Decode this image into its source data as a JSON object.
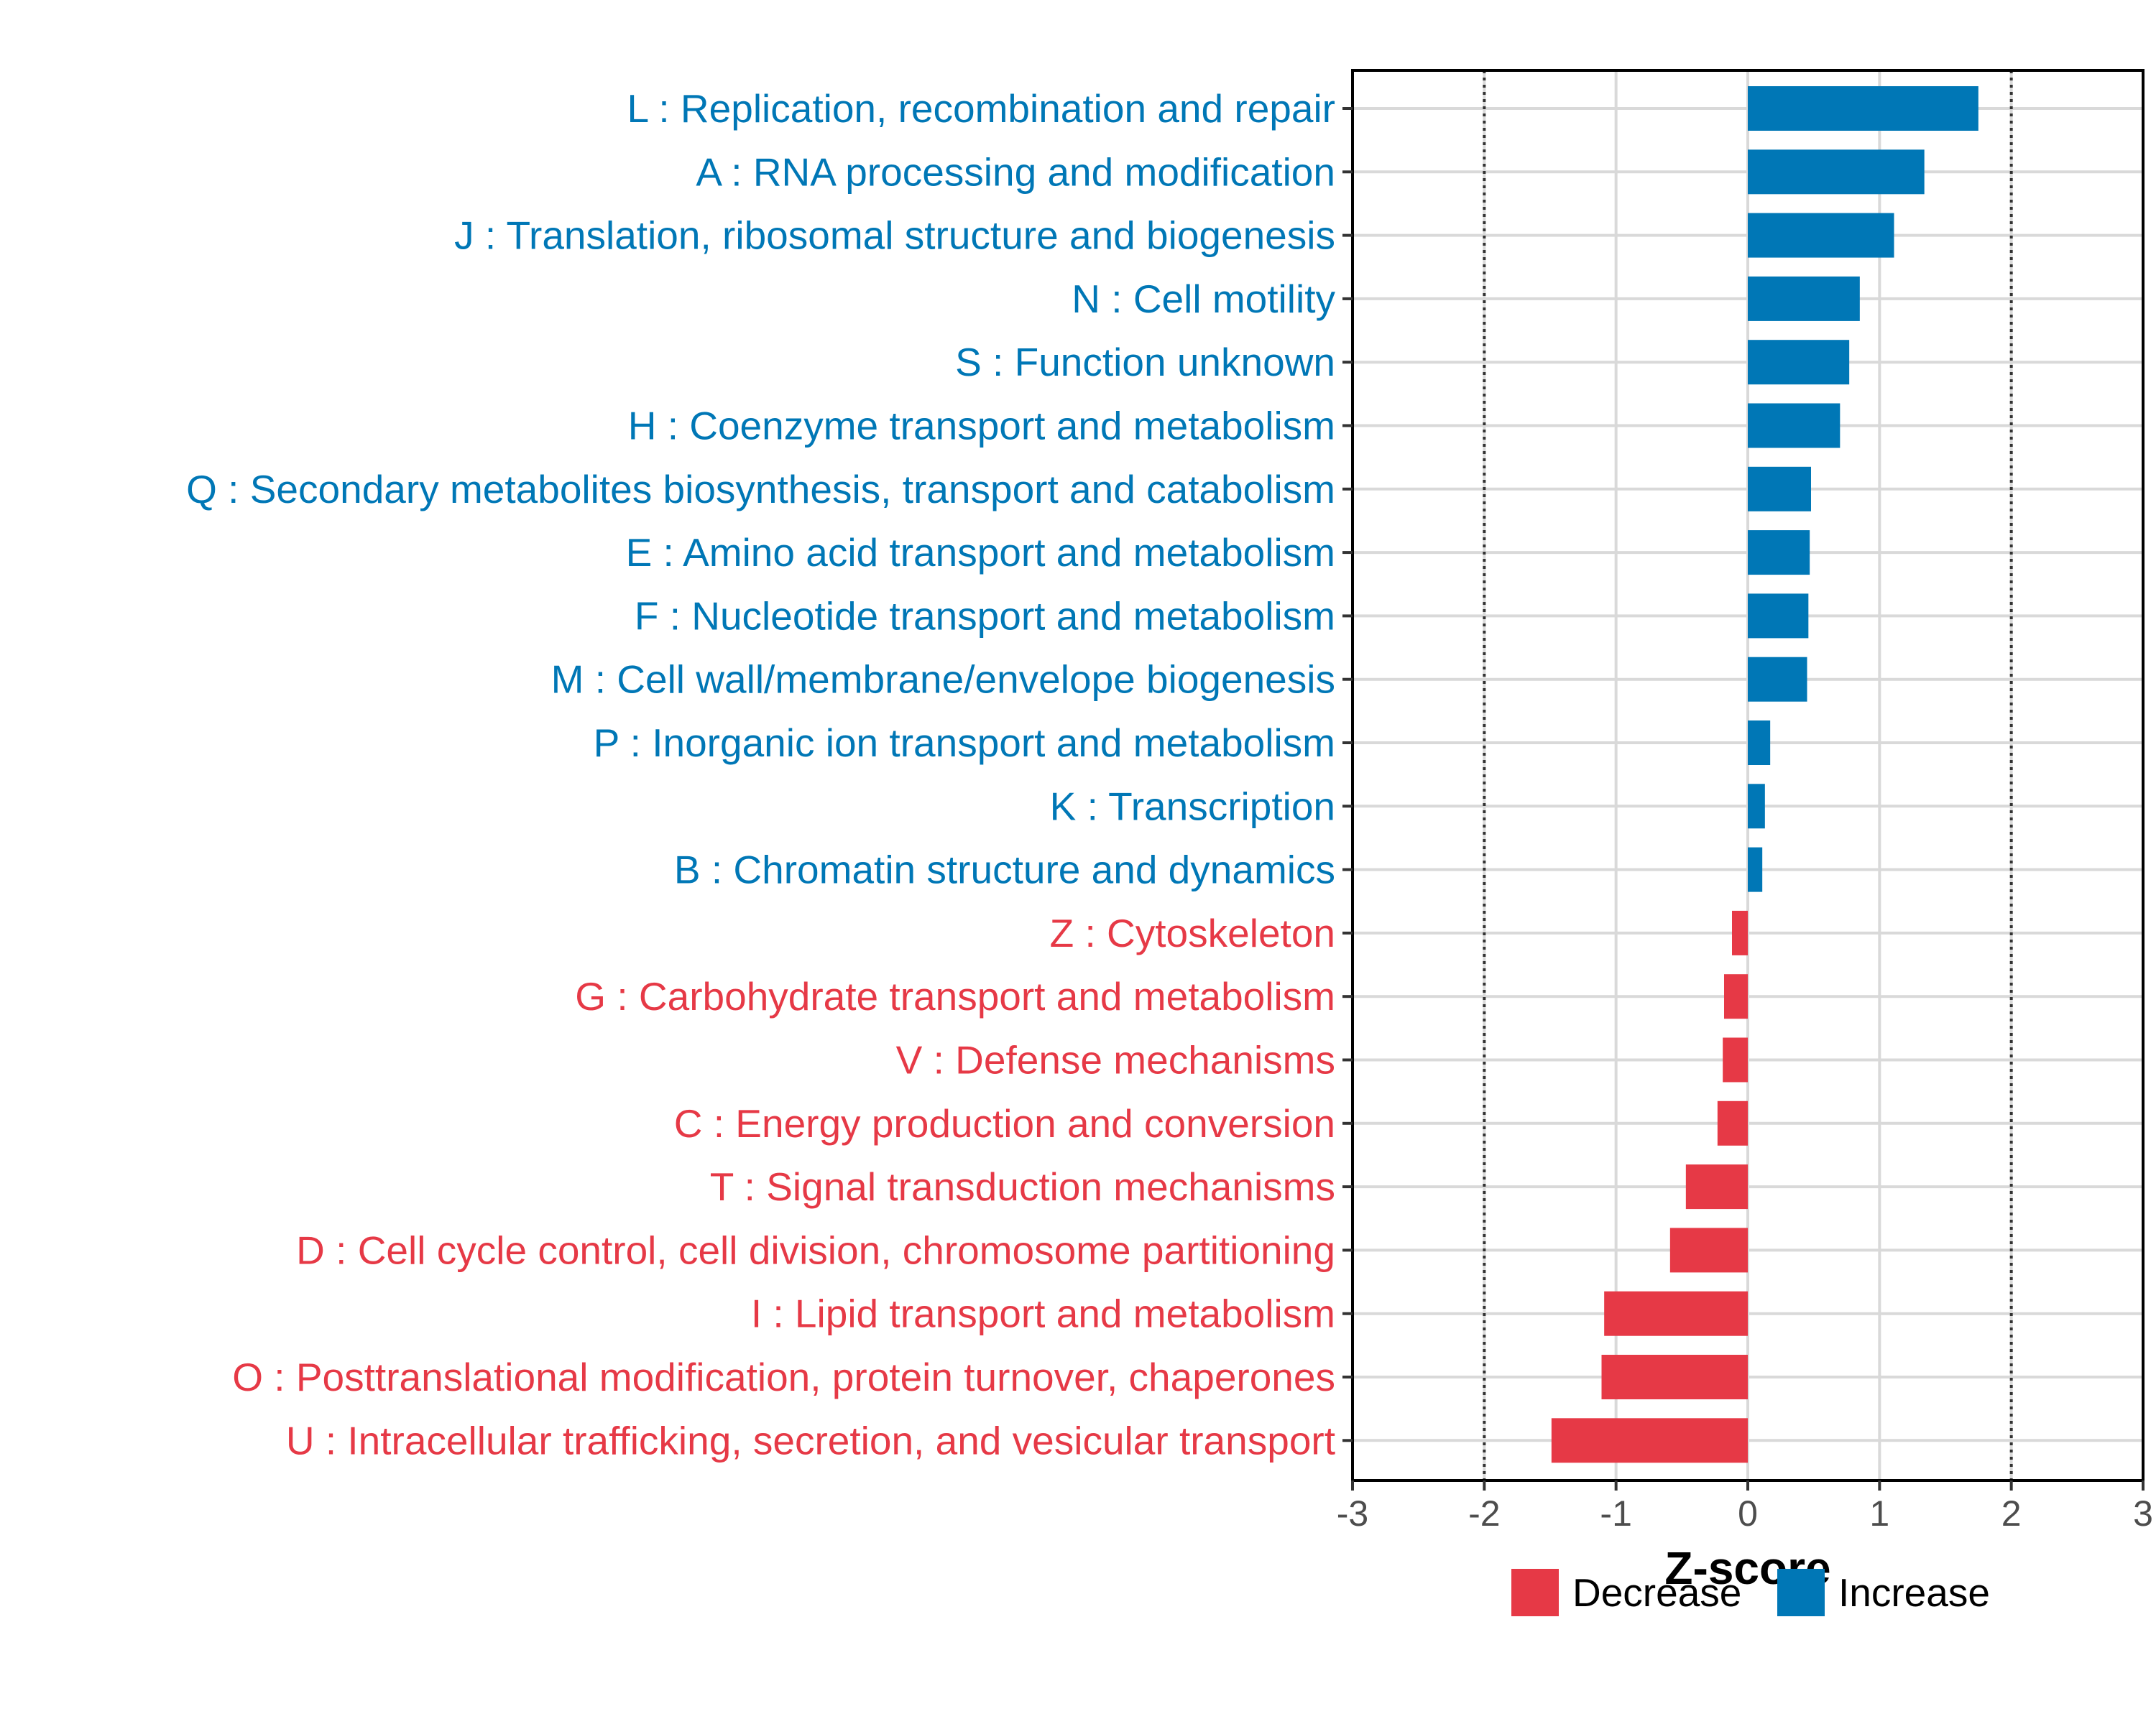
{
  "chart_data": {
    "type": "bar",
    "orientation": "horizontal",
    "xlabel": "Z-score",
    "xlim": [
      -3,
      3
    ],
    "xticks": [
      -3,
      -2,
      -1,
      0,
      1,
      2,
      3
    ],
    "reference_lines": [
      -2,
      2
    ],
    "grid": true,
    "categories": [
      "L : Replication, recombination and repair",
      "A : RNA processing and modification",
      "J : Translation, ribosomal structure and biogenesis",
      "N : Cell motility",
      "S : Function unknown",
      "H : Coenzyme transport and metabolism",
      "Q : Secondary metabolites biosynthesis, transport and catabolism",
      "E : Amino acid transport and metabolism",
      "F : Nucleotide transport and metabolism",
      "M : Cell wall/membrane/envelope biogenesis",
      "P : Inorganic ion transport and metabolism",
      "K : Transcription",
      "B : Chromatin structure and dynamics",
      "Z : Cytoskeleton",
      "G : Carbohydrate transport and metabolism",
      "V : Defense mechanisms",
      "C : Energy production and conversion",
      "T : Signal transduction mechanisms",
      "D : Cell cycle control, cell division, chromosome partitioning",
      "I : Lipid transport and metabolism",
      "O : Posttranslational modification, protein turnover, chaperones",
      "U : Intracellular trafficking, secretion, and vesicular transport"
    ],
    "values": [
      1.75,
      1.34,
      1.11,
      0.85,
      0.77,
      0.7,
      0.48,
      0.47,
      0.46,
      0.45,
      0.17,
      0.13,
      0.11,
      -0.12,
      -0.18,
      -0.19,
      -0.23,
      -0.47,
      -0.59,
      -1.09,
      -1.11,
      -1.49
    ],
    "groups": [
      "Increase",
      "Increase",
      "Increase",
      "Increase",
      "Increase",
      "Increase",
      "Increase",
      "Increase",
      "Increase",
      "Increase",
      "Increase",
      "Increase",
      "Increase",
      "Decrease",
      "Decrease",
      "Decrease",
      "Decrease",
      "Decrease",
      "Decrease",
      "Decrease",
      "Decrease",
      "Decrease"
    ],
    "legend": [
      {
        "label": "Decrease",
        "color": "#E63946"
      },
      {
        "label": "Increase",
        "color": "#0077B6"
      }
    ],
    "legend_position": "bottom-right"
  }
}
